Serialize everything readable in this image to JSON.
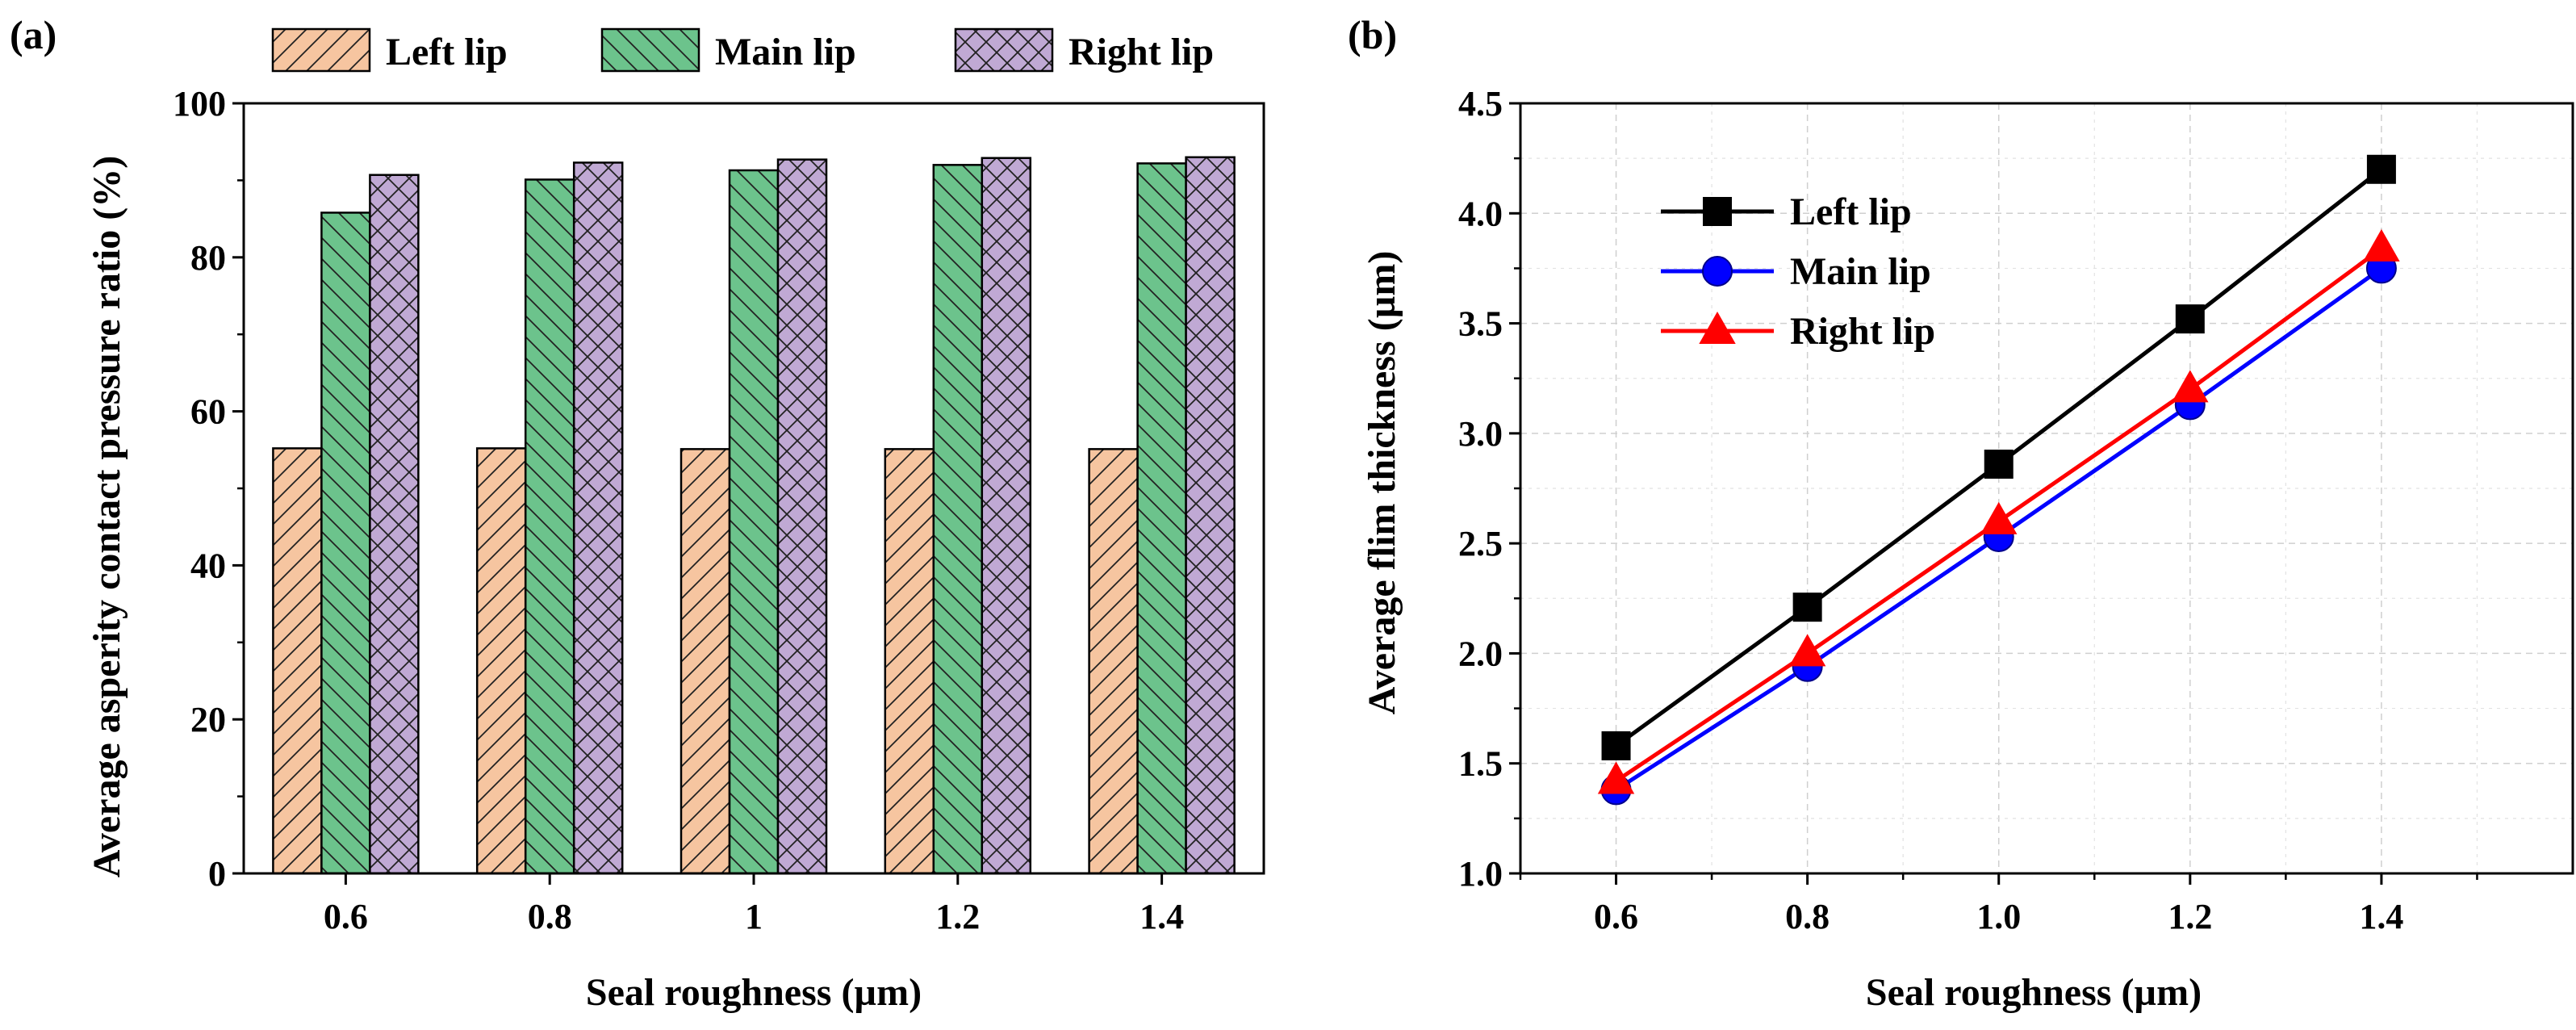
{
  "chart_data": [
    {
      "type": "bar",
      "panel_label": "(a)",
      "xlabel": "Seal roughness (µm)",
      "ylabel": "Average asperity contact pressure ratio (%)",
      "categories": [
        "0.6",
        "0.8",
        "1",
        "1.2",
        "1.4"
      ],
      "ylim": [
        0,
        100
      ],
      "yticks": [
        "0",
        "20",
        "40",
        "60",
        "80",
        "100"
      ],
      "legend_position": "top",
      "series": [
        {
          "name": "Left lip",
          "color": "#f6c5a0",
          "hatch": "forward-diagonal",
          "values": [
            55.2,
            55.2,
            55.1,
            55.1,
            55.1
          ]
        },
        {
          "name": "Main lip",
          "color": "#6cc38c",
          "hatch": "back-diagonal",
          "values": [
            85.8,
            90.1,
            91.3,
            92.0,
            92.2
          ]
        },
        {
          "name": "Right lip",
          "color": "#c0a9d4",
          "hatch": "cross",
          "values": [
            90.7,
            92.3,
            92.7,
            92.9,
            93.0
          ]
        }
      ]
    },
    {
      "type": "line",
      "panel_label": "(b)",
      "xlabel": "Seal roughness (µm)",
      "ylabel": "Average flim thickness (µm)",
      "x": [
        0.6,
        0.8,
        1.0,
        1.2,
        1.4
      ],
      "xticks": [
        "0.6",
        "0.8",
        "1.0",
        "1.2",
        "1.4"
      ],
      "xlim": [
        0.5,
        1.6
      ],
      "ylim": [
        1.0,
        4.5
      ],
      "yticks": [
        "1.0",
        "1.5",
        "2.0",
        "2.5",
        "3.0",
        "3.5",
        "4.0",
        "4.5"
      ],
      "grid": true,
      "legend_position": "top-left",
      "series": [
        {
          "name": "Left lip",
          "color": "#000000",
          "marker": "square",
          "values": [
            1.58,
            2.21,
            2.86,
            3.52,
            4.2
          ]
        },
        {
          "name": "Main lip",
          "color": "#0000ff",
          "marker": "circle",
          "values": [
            1.38,
            1.94,
            2.53,
            3.13,
            3.75
          ]
        },
        {
          "name": "Right lip",
          "color": "#ff0000",
          "marker": "triangle",
          "values": [
            1.42,
            2.0,
            2.6,
            3.2,
            3.84
          ]
        }
      ]
    }
  ]
}
